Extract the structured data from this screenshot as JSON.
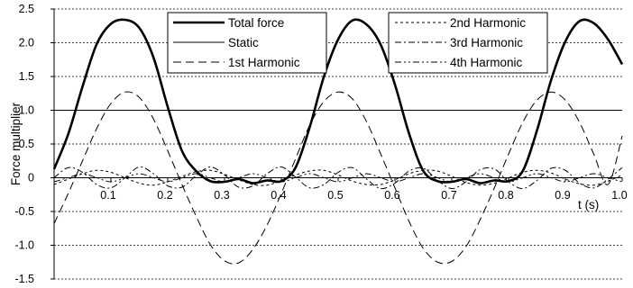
{
  "chart_data": {
    "type": "line",
    "title": "",
    "xlabel": "t (s)",
    "ylabel": "Force multiplier",
    "xlim": [
      0,
      1.0
    ],
    "ylim": [
      -1.5,
      2.5
    ],
    "x_ticks": [
      0.1,
      0.2,
      0.3,
      0.4,
      0.5,
      0.6,
      0.7,
      0.8,
      0.9,
      1.0
    ],
    "x_tick_labels": [
      "0.1",
      "0.2",
      "0.3",
      "0.4",
      "0.5",
      "0.6",
      "0.7",
      "0.8",
      "0.9",
      "1.0"
    ],
    "y_ticks": [
      -1.5,
      -1.0,
      -0.5,
      0,
      0.5,
      1.0,
      1.5,
      2.0,
      2.5
    ],
    "y_tick_labels": [
      "-1.5",
      "-1.0",
      "-0.5",
      "0",
      "0.5",
      "1.0",
      "1.5",
      "2.0",
      "2.5"
    ],
    "grid": "horizontal",
    "x": [
      0,
      0.025,
      0.05,
      0.075,
      0.1,
      0.125,
      0.15,
      0.175,
      0.2,
      0.225,
      0.25,
      0.275,
      0.3,
      0.325,
      0.35,
      0.375,
      0.4,
      0.425,
      0.45,
      0.475,
      0.5,
      0.525,
      0.55,
      0.575,
      0.6,
      0.625,
      0.65,
      0.675,
      0.7,
      0.725,
      0.75,
      0.775,
      0.8,
      0.825,
      0.85,
      0.875,
      0.9,
      0.925,
      0.95,
      0.975,
      1.0
    ],
    "series": [
      {
        "name": "Total force",
        "style": "thick-solid",
        "values": [
          0.13,
          0.65,
          1.35,
          1.98,
          2.28,
          2.34,
          2.22,
          1.78,
          1.05,
          0.4,
          0.1,
          -0.05,
          -0.06,
          -0.02,
          -0.08,
          -0.04,
          -0.05,
          0.15,
          0.75,
          1.5,
          2.05,
          2.33,
          2.27,
          1.97,
          1.38,
          0.65,
          0.1,
          -0.05,
          -0.06,
          -0.02,
          -0.08,
          -0.04,
          -0.05,
          0.1,
          0.7,
          1.45,
          2.02,
          2.32,
          2.29,
          2.05,
          1.68
        ]
      },
      {
        "name": "Static",
        "style": "thin-solid",
        "values": [
          0,
          0,
          0,
          0,
          0,
          0,
          0,
          0,
          0,
          0,
          0,
          0,
          0,
          0,
          0,
          0,
          0,
          0,
          0,
          0,
          0,
          0,
          0,
          0,
          0,
          0,
          0,
          0,
          0,
          0,
          0,
          0,
          0,
          0,
          0,
          0,
          0,
          0,
          0,
          0,
          0
        ]
      },
      {
        "name": "1st Harmonic",
        "style": "long-dash",
        "values": [
          -0.68,
          -0.23,
          0.25,
          0.73,
          1.1,
          1.27,
          1.19,
          0.87,
          0.4,
          -0.1,
          -0.57,
          -0.99,
          -1.23,
          -1.26,
          -1.06,
          -0.7,
          -0.23,
          0.28,
          0.78,
          1.13,
          1.27,
          1.17,
          0.83,
          0.35,
          -0.15,
          -0.65,
          -1.05,
          -1.25,
          -1.24,
          -1.02,
          -0.62,
          -0.15,
          0.35,
          0.82,
          1.15,
          1.27,
          1.15,
          0.82,
          0.35,
          -0.1,
          0.62
        ]
      },
      {
        "name": "2nd Harmonic",
        "style": "short-dash",
        "values": [
          -0.1,
          -0.02,
          0.06,
          0.11,
          0.08,
          0.0,
          -0.08,
          -0.11,
          -0.06,
          0.02,
          0.09,
          0.11,
          0.05,
          -0.03,
          -0.1,
          -0.11,
          -0.04,
          0.04,
          0.1,
          0.11,
          0.04,
          -0.05,
          -0.1,
          -0.1,
          -0.03,
          0.06,
          0.11,
          0.1,
          0.02,
          -0.07,
          -0.11,
          -0.08,
          0.0,
          0.08,
          0.11,
          0.07,
          -0.02,
          -0.09,
          -0.11,
          -0.05,
          0.04
        ]
      },
      {
        "name": "3rd Harmonic",
        "style": "dash-dot",
        "values": [
          0.0,
          0.15,
          0.08,
          -0.1,
          -0.15,
          0.0,
          0.16,
          0.06,
          -0.12,
          -0.14,
          0.03,
          0.16,
          0.04,
          -0.14,
          -0.12,
          0.06,
          0.16,
          0.01,
          -0.15,
          -0.1,
          0.08,
          0.15,
          -0.02,
          -0.16,
          -0.08,
          0.1,
          0.14,
          -0.04,
          -0.16,
          -0.06,
          0.12,
          0.13,
          -0.06,
          -0.16,
          -0.04,
          0.14,
          0.11,
          -0.08,
          -0.15,
          -0.02,
          0.15
        ]
      },
      {
        "name": "4th Harmonic",
        "style": "dash-dot-dot",
        "values": [
          -0.06,
          0.0,
          0.06,
          0.0,
          -0.06,
          0.0,
          0.06,
          0.0,
          -0.06,
          0.0,
          0.06,
          0.0,
          -0.06,
          0.0,
          0.06,
          0.0,
          -0.06,
          0.0,
          0.06,
          0.0,
          -0.06,
          0.0,
          0.06,
          0.0,
          -0.06,
          0.0,
          0.06,
          0.0,
          -0.06,
          0.0,
          0.06,
          0.0,
          -0.06,
          0.0,
          0.06,
          0.0,
          -0.06,
          0.0,
          0.06,
          0.0,
          -0.06
        ]
      }
    ],
    "legends": [
      {
        "placement": "top-center",
        "entries": [
          "Total force",
          "Static",
          "1st Harmonic"
        ]
      },
      {
        "placement": "top-right",
        "entries": [
          "2nd Harmonic",
          "3rd Harmonic",
          "4th Harmonic"
        ]
      }
    ]
  }
}
